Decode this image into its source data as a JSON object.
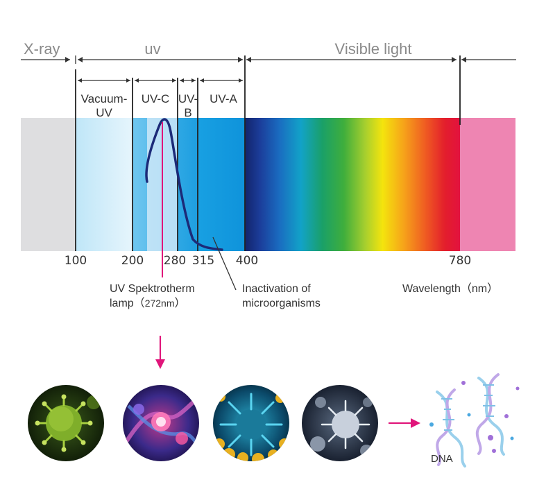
{
  "bands": {
    "xray": "X-ray",
    "uv": "uv",
    "visible": "Visible light"
  },
  "sub_bands": {
    "vacuum_uv_line1": "Vacuum-",
    "vacuum_uv_line2": "UV",
    "uvc": "UV-C",
    "uvb_line1": "UV-",
    "uvb_line2": "B",
    "uva": "UV-A"
  },
  "ticks": [
    "100",
    "200",
    "280",
    "315",
    "400",
    "780"
  ],
  "lamp_label": {
    "line1": "UV Spektrotherm",
    "line2_prefix": "lamp（",
    "value": "272nm",
    "line2_suffix": "）"
  },
  "inactivation_label": {
    "line1": "Inactivation  of",
    "line2": "microorganisms"
  },
  "axis_label": "Wavelength（nm）",
  "dna_label": "DNA",
  "colors": {
    "lamp_accent": "#e0157a",
    "curve": "#1c2a78",
    "xray_fill": "#dedee0",
    "ir_fill": "#ee85b2"
  }
}
